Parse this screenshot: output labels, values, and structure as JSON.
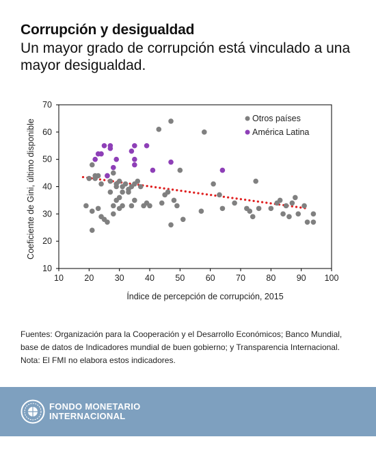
{
  "header": {
    "title": "Corrupción y desigualdad",
    "subtitle": "Un mayor grado de corrupción está vinculado a una mayor desigualdad."
  },
  "chart_data": {
    "type": "scatter",
    "xlabel": "Índice de percepción de corrupción, 2015",
    "ylabel": "Coeficiente de Gini, último disponible",
    "xlim": [
      10,
      100
    ],
    "ylim": [
      10,
      70
    ],
    "x_ticks": [
      "10",
      "20",
      "30",
      "40",
      "50",
      "60",
      "70",
      "80",
      "90",
      "100"
    ],
    "y_ticks": [
      "10",
      "20",
      "30",
      "40",
      "50",
      "60",
      "70"
    ],
    "grid": false,
    "legend_position": "top-right",
    "series": [
      {
        "name": "Otros países",
        "color": "#808080",
        "points": [
          [
            19,
            33
          ],
          [
            20,
            43
          ],
          [
            21,
            48
          ],
          [
            21,
            31
          ],
          [
            21,
            24
          ],
          [
            22,
            44
          ],
          [
            22,
            43
          ],
          [
            23,
            32
          ],
          [
            23,
            44
          ],
          [
            24,
            29
          ],
          [
            24,
            41
          ],
          [
            25,
            28
          ],
          [
            26,
            44
          ],
          [
            26,
            27
          ],
          [
            27,
            42
          ],
          [
            27,
            38
          ],
          [
            28,
            33
          ],
          [
            28,
            30
          ],
          [
            28,
            45
          ],
          [
            29,
            35
          ],
          [
            29,
            41
          ],
          [
            29,
            40
          ],
          [
            30,
            42
          ],
          [
            30,
            36
          ],
          [
            30,
            32
          ],
          [
            31,
            33
          ],
          [
            31,
            40
          ],
          [
            31,
            38
          ],
          [
            32,
            41
          ],
          [
            33,
            38
          ],
          [
            33,
            39
          ],
          [
            34,
            33
          ],
          [
            34,
            40
          ],
          [
            35,
            41
          ],
          [
            35,
            35
          ],
          [
            36,
            42
          ],
          [
            37,
            40
          ],
          [
            38,
            33
          ],
          [
            39,
            34
          ],
          [
            40,
            33
          ],
          [
            43,
            61
          ],
          [
            44,
            34
          ],
          [
            45,
            37
          ],
          [
            46,
            38
          ],
          [
            47,
            64
          ],
          [
            47,
            26
          ],
          [
            48,
            35
          ],
          [
            49,
            33
          ],
          [
            50,
            46
          ],
          [
            51,
            28
          ],
          [
            57,
            31
          ],
          [
            58,
            60
          ],
          [
            61,
            41
          ],
          [
            63,
            37
          ],
          [
            64,
            32
          ],
          [
            68,
            34
          ],
          [
            72,
            32
          ],
          [
            73,
            31
          ],
          [
            74,
            29
          ],
          [
            75,
            42
          ],
          [
            76,
            32
          ],
          [
            80,
            32
          ],
          [
            82,
            34
          ],
          [
            83,
            35
          ],
          [
            84,
            30
          ],
          [
            85,
            33
          ],
          [
            86,
            29
          ],
          [
            87,
            34
          ],
          [
            88,
            36
          ],
          [
            89,
            30
          ],
          [
            91,
            33
          ],
          [
            92,
            27
          ],
          [
            94,
            30
          ],
          [
            94,
            27
          ]
        ]
      },
      {
        "name": "América Latina",
        "color": "#8e3fb7",
        "points": [
          [
            22,
            50
          ],
          [
            23,
            52
          ],
          [
            24,
            52
          ],
          [
            25,
            55
          ],
          [
            26,
            44
          ],
          [
            27,
            55
          ],
          [
            27,
            54
          ],
          [
            28,
            47
          ],
          [
            29,
            50
          ],
          [
            34,
            53
          ],
          [
            35,
            50
          ],
          [
            35,
            48
          ],
          [
            35,
            55
          ],
          [
            39,
            55
          ],
          [
            41,
            46
          ],
          [
            47,
            49
          ],
          [
            64,
            46
          ]
        ]
      }
    ],
    "trendline": {
      "color": "#e02020",
      "style": "dotted",
      "from": [
        18,
        43.5
      ],
      "to": [
        92,
        32
      ]
    }
  },
  "notes": {
    "line1": "Fuentes: Organización para la Cooperación y el Desarrollo Económicos; Banco Mundial,",
    "line2": "base de datos de Indicadores mundial de buen gobierno; y Transparencia Internacional.",
    "line3": "Nota: El FMI no elabora estos indicadores."
  },
  "footer": {
    "org_line1": "FONDO MONETARIO",
    "org_line2": "INTERNACIONAL",
    "bg_color": "#7ea0bf"
  }
}
